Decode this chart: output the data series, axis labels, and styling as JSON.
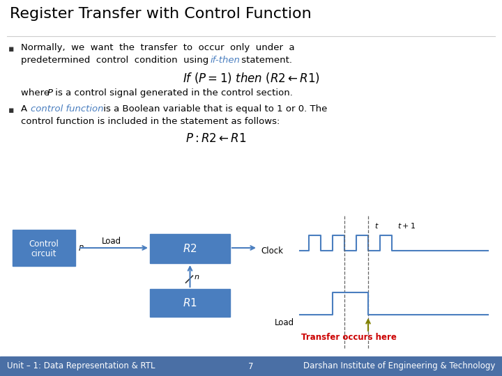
{
  "title": "Register Transfer with Control Function",
  "bg_color": "#ffffff",
  "title_color": "#000000",
  "title_fontsize": 16,
  "footer_bg": "#4a6fa5",
  "footer_text_left": "Unit – 1: Data Representation & RTL",
  "footer_text_mid": "7",
  "footer_text_right": "Darshan Institute of Engineering & Technology",
  "footer_fontsize": 8.5,
  "box_color": "#4a7ebf",
  "box_text_color": "#ffffff",
  "line_color": "#4a7ebf",
  "italic_color": "#4a7ebf",
  "red_color": "#cc0000",
  "olive_color": "#808000",
  "dashed_color": "#666666",
  "clock_color": "#4a7ebf",
  "load_color": "#4a7ebf",
  "text_fontsize": 9.5,
  "math_fontsize": 11
}
